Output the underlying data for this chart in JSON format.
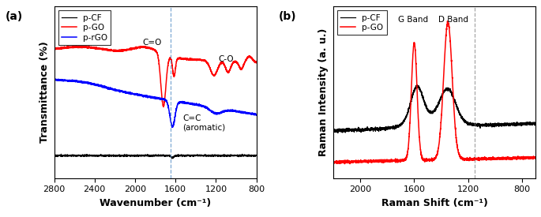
{
  "panel_a": {
    "xlabel": "Wavenumber (cm⁻¹)",
    "ylabel": "Transmittance (%)",
    "legend": [
      "p-CF",
      "p-GO",
      "p-rGO"
    ],
    "colors": [
      "black",
      "red",
      "blue"
    ],
    "dashed_line_x": 1650,
    "xticks": [
      2800,
      2400,
      2000,
      1600,
      1200,
      800
    ]
  },
  "panel_b": {
    "xlabel": "Raman Shift (cm⁻¹)",
    "ylabel": "Raman Intensity (a. u.)",
    "legend": [
      "p-CF",
      "p-GO"
    ],
    "colors": [
      "black",
      "red"
    ],
    "dashed_line_x": 1150,
    "xticks": [
      2000,
      1600,
      1200,
      800
    ]
  },
  "background_color": "white",
  "figure_facecolor": "white"
}
